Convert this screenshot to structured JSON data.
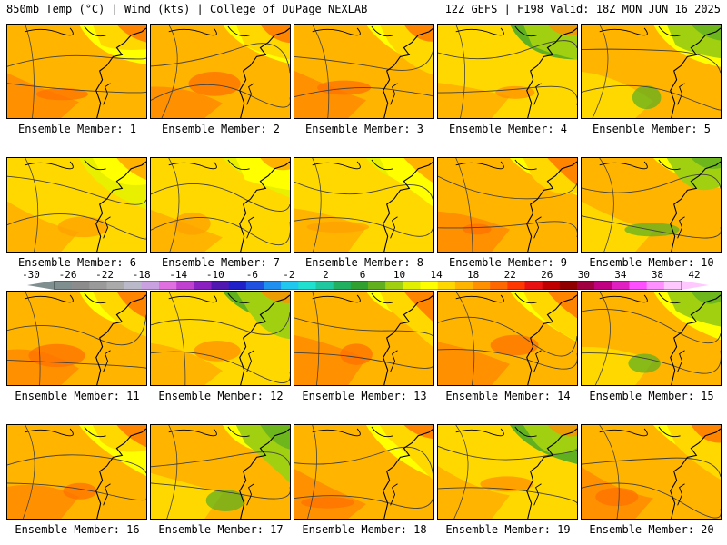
{
  "header": {
    "left": "850mb Temp (°C) | Wind (kts) | College of DuPage NEXLAB",
    "right": "12Z GEFS | F198 Valid: 18Z MON JUN 16 2025"
  },
  "label_prefix": "Ensemble Member: ",
  "colorbar": {
    "tick_labels": [
      "-30",
      "-26",
      "-22",
      "-18",
      "-14",
      "-10",
      "-6",
      "-2",
      "2",
      "6",
      "10",
      "14",
      "18",
      "22",
      "26",
      "30",
      "34",
      "38",
      "42"
    ],
    "colors": [
      "#7f8f8f",
      "#8c8c8c",
      "#9a9a9a",
      "#aaaaaa",
      "#b9b9c9",
      "#c9a0e0",
      "#e070e0",
      "#c040d0",
      "#8a20c0",
      "#5018b0",
      "#2020c8",
      "#2050e0",
      "#2090f0",
      "#20c8f0",
      "#20e0d0",
      "#20c8a0",
      "#20b060",
      "#30a030",
      "#60b020",
      "#a0d010",
      "#e0f000",
      "#ffff00",
      "#ffd800",
      "#ffb400",
      "#ff9000",
      "#ff6800",
      "#ff3800",
      "#e81010",
      "#c00000",
      "#900000",
      "#a00040",
      "#c00080",
      "#e020c0",
      "#ff50ff",
      "#ff90ff",
      "#ffc8ff"
    ]
  },
  "members": [
    {
      "id": "1",
      "scheme": "warm"
    },
    {
      "id": "2",
      "scheme": "warm"
    },
    {
      "id": "3",
      "scheme": "warm"
    },
    {
      "id": "4",
      "scheme": "mixed"
    },
    {
      "id": "5",
      "scheme": "green"
    },
    {
      "id": "6",
      "scheme": "yellow"
    },
    {
      "id": "7",
      "scheme": "yellow"
    },
    {
      "id": "8",
      "scheme": "yellow"
    },
    {
      "id": "9",
      "scheme": "warm"
    },
    {
      "id": "10",
      "scheme": "green"
    },
    {
      "id": "11",
      "scheme": "warm"
    },
    {
      "id": "12",
      "scheme": "mixed"
    },
    {
      "id": "13",
      "scheme": "warm"
    },
    {
      "id": "14",
      "scheme": "warm"
    },
    {
      "id": "15",
      "scheme": "green"
    },
    {
      "id": "16",
      "scheme": "warm"
    },
    {
      "id": "17",
      "scheme": "green"
    },
    {
      "id": "18",
      "scheme": "warm"
    },
    {
      "id": "19",
      "scheme": "mixed"
    },
    {
      "id": "20",
      "scheme": "warm"
    }
  ]
}
